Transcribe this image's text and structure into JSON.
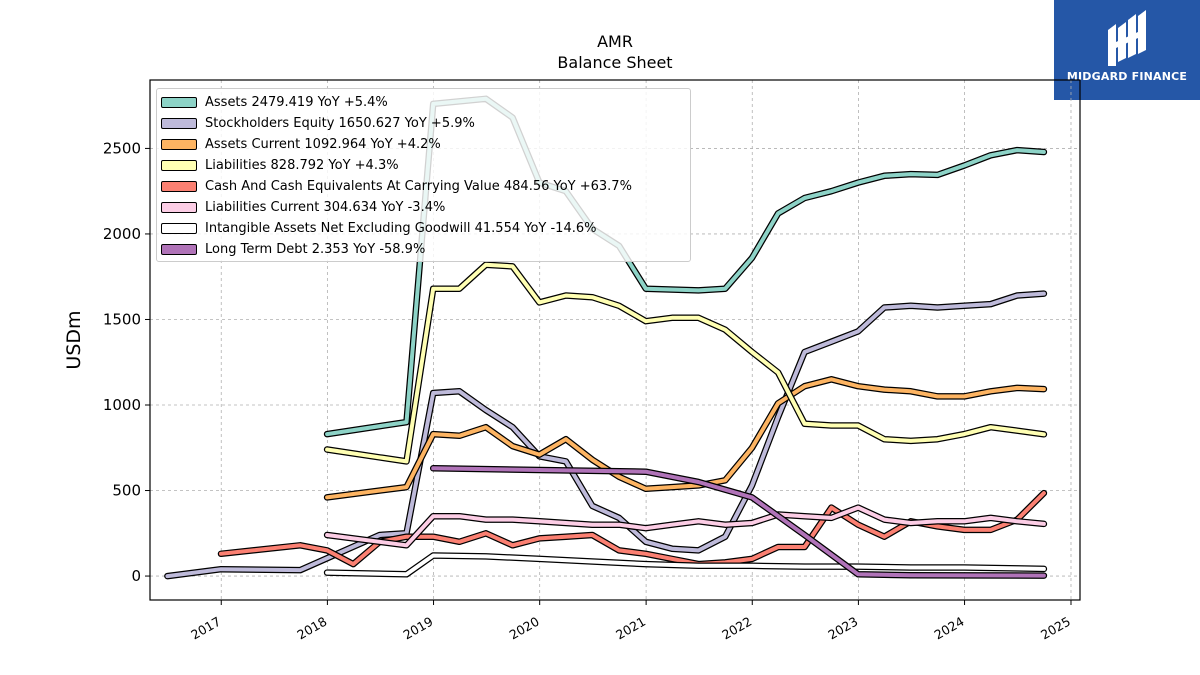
{
  "logo": {
    "text": "MIDGARD FINANCE",
    "icon": "midgard-logo-icon",
    "color": "#2557a7"
  },
  "chart_data": {
    "type": "line",
    "title": "AMR",
    "subtitle": "Balance  Sheet",
    "xlabel": "",
    "ylabel": "USDm",
    "xlim": [
      "2016-05-01",
      "2025-02-01"
    ],
    "ylim": [
      -140,
      2900
    ],
    "x_ticks": [
      "2017",
      "2018",
      "2019",
      "2020",
      "2021",
      "2022",
      "2023",
      "2024",
      "2025"
    ],
    "y_ticks": [
      0,
      500,
      1000,
      1500,
      2000,
      2500
    ],
    "grid": true,
    "legend_position": "top-left",
    "series": [
      {
        "name": "Assets",
        "label": "Assets  2479.419 YoY +5.4%",
        "color": "#8dd3c7",
        "points": [
          [
            "2017-12-31",
            830
          ],
          [
            "2018-09-30",
            900
          ],
          [
            "2018-12-31",
            2760
          ],
          [
            "2019-06-30",
            2790
          ],
          [
            "2019-09-30",
            2680
          ],
          [
            "2019-12-31",
            2300
          ],
          [
            "2020-03-31",
            2250
          ],
          [
            "2020-06-30",
            2030
          ],
          [
            "2020-09-30",
            1930
          ],
          [
            "2020-12-31",
            1680
          ],
          [
            "2021-06-30",
            1670
          ],
          [
            "2021-09-30",
            1680
          ],
          [
            "2021-12-31",
            1860
          ],
          [
            "2022-03-31",
            2120
          ],
          [
            "2022-06-30",
            2210
          ],
          [
            "2022-09-30",
            2250
          ],
          [
            "2022-12-31",
            2300
          ],
          [
            "2023-03-31",
            2340
          ],
          [
            "2023-06-30",
            2350
          ],
          [
            "2023-09-30",
            2345
          ],
          [
            "2023-12-31",
            2400
          ],
          [
            "2024-03-31",
            2460
          ],
          [
            "2024-06-30",
            2490
          ],
          [
            "2024-09-30",
            2479
          ]
        ]
      },
      {
        "name": "Stockholders Equity",
        "label": "Stockholders Equity  1650.627 YoY +5.9%",
        "color": "#bebada",
        "points": [
          [
            "2016-06-30",
            0
          ],
          [
            "2016-12-31",
            40
          ],
          [
            "2017-09-30",
            35
          ],
          [
            "2018-06-30",
            240
          ],
          [
            "2018-09-30",
            250
          ],
          [
            "2018-12-31",
            1070
          ],
          [
            "2019-03-31",
            1080
          ],
          [
            "2019-06-30",
            970
          ],
          [
            "2019-09-30",
            870
          ],
          [
            "2019-12-31",
            700
          ],
          [
            "2020-03-31",
            670
          ],
          [
            "2020-06-30",
            410
          ],
          [
            "2020-09-30",
            340
          ],
          [
            "2020-12-31",
            200
          ],
          [
            "2021-03-31",
            160
          ],
          [
            "2021-06-30",
            150
          ],
          [
            "2021-09-30",
            230
          ],
          [
            "2021-12-31",
            530
          ],
          [
            "2022-03-31",
            930
          ],
          [
            "2022-06-30",
            1310
          ],
          [
            "2022-09-30",
            1370
          ],
          [
            "2022-12-31",
            1430
          ],
          [
            "2023-03-31",
            1570
          ],
          [
            "2023-06-30",
            1580
          ],
          [
            "2023-09-30",
            1570
          ],
          [
            "2023-12-31",
            1580
          ],
          [
            "2024-03-31",
            1590
          ],
          [
            "2024-06-30",
            1640
          ],
          [
            "2024-09-30",
            1651
          ]
        ]
      },
      {
        "name": "Assets Current",
        "label": "Assets Current  1092.964 YoY +4.2%",
        "color": "#fdb462",
        "points": [
          [
            "2017-12-31",
            460
          ],
          [
            "2018-09-30",
            520
          ],
          [
            "2018-12-31",
            830
          ],
          [
            "2019-03-31",
            820
          ],
          [
            "2019-06-30",
            870
          ],
          [
            "2019-09-30",
            760
          ],
          [
            "2019-12-31",
            710
          ],
          [
            "2020-03-31",
            800
          ],
          [
            "2020-06-30",
            680
          ],
          [
            "2020-09-30",
            580
          ],
          [
            "2020-12-31",
            510
          ],
          [
            "2021-03-31",
            520
          ],
          [
            "2021-06-30",
            530
          ],
          [
            "2021-09-30",
            560
          ],
          [
            "2021-12-31",
            750
          ],
          [
            "2022-03-31",
            1010
          ],
          [
            "2022-06-30",
            1110
          ],
          [
            "2022-09-30",
            1150
          ],
          [
            "2022-12-31",
            1110
          ],
          [
            "2023-03-31",
            1090
          ],
          [
            "2023-06-30",
            1080
          ],
          [
            "2023-09-30",
            1050
          ],
          [
            "2023-12-31",
            1050
          ],
          [
            "2024-03-31",
            1080
          ],
          [
            "2024-06-30",
            1100
          ],
          [
            "2024-09-30",
            1093
          ]
        ]
      },
      {
        "name": "Liabilities",
        "label": "Liabilities  828.792 YoY +4.3%",
        "color": "#ffffb3",
        "points": [
          [
            "2017-12-31",
            740
          ],
          [
            "2018-09-30",
            670
          ],
          [
            "2018-12-31",
            1680
          ],
          [
            "2019-03-31",
            1680
          ],
          [
            "2019-06-30",
            1820
          ],
          [
            "2019-09-30",
            1810
          ],
          [
            "2019-12-31",
            1600
          ],
          [
            "2020-03-31",
            1640
          ],
          [
            "2020-06-30",
            1630
          ],
          [
            "2020-09-30",
            1580
          ],
          [
            "2020-12-31",
            1490
          ],
          [
            "2021-03-31",
            1510
          ],
          [
            "2021-06-30",
            1510
          ],
          [
            "2021-09-30",
            1440
          ],
          [
            "2021-12-31",
            1310
          ],
          [
            "2022-03-31",
            1190
          ],
          [
            "2022-06-30",
            890
          ],
          [
            "2022-09-30",
            880
          ],
          [
            "2022-12-31",
            880
          ],
          [
            "2023-03-31",
            800
          ],
          [
            "2023-06-30",
            790
          ],
          [
            "2023-09-30",
            800
          ],
          [
            "2023-12-31",
            830
          ],
          [
            "2024-03-31",
            870
          ],
          [
            "2024-06-30",
            850
          ],
          [
            "2024-09-30",
            829
          ]
        ]
      },
      {
        "name": "Cash And Cash Equivalents At Carrying Value",
        "label": "Cash And Cash Equivalents At Carrying Value  484.56 YoY +63.7%",
        "color": "#fb8072",
        "points": [
          [
            "2016-12-31",
            130
          ],
          [
            "2017-09-30",
            180
          ],
          [
            "2017-12-31",
            150
          ],
          [
            "2018-03-31",
            70
          ],
          [
            "2018-06-30",
            200
          ],
          [
            "2018-09-30",
            230
          ],
          [
            "2018-12-31",
            230
          ],
          [
            "2019-03-31",
            200
          ],
          [
            "2019-06-30",
            250
          ],
          [
            "2019-09-30",
            180
          ],
          [
            "2019-12-31",
            220
          ],
          [
            "2020-03-31",
            230
          ],
          [
            "2020-06-30",
            240
          ],
          [
            "2020-09-30",
            150
          ],
          [
            "2020-12-31",
            130
          ],
          [
            "2021-03-31",
            100
          ],
          [
            "2021-06-30",
            70
          ],
          [
            "2021-09-30",
            80
          ],
          [
            "2021-12-31",
            100
          ],
          [
            "2022-03-31",
            170
          ],
          [
            "2022-06-30",
            170
          ],
          [
            "2022-09-30",
            400
          ],
          [
            "2022-12-31",
            300
          ],
          [
            "2023-03-31",
            230
          ],
          [
            "2023-06-30",
            320
          ],
          [
            "2023-09-30",
            290
          ],
          [
            "2023-12-31",
            270
          ],
          [
            "2024-03-31",
            270
          ],
          [
            "2024-06-30",
            330
          ],
          [
            "2024-09-30",
            485
          ]
        ]
      },
      {
        "name": "Liabilities Current",
        "label": "Liabilities Current  304.634 YoY -3.4%",
        "color": "#fccde5",
        "points": [
          [
            "2017-12-31",
            240
          ],
          [
            "2018-09-30",
            180
          ],
          [
            "2018-12-31",
            350
          ],
          [
            "2019-03-31",
            350
          ],
          [
            "2019-06-30",
            330
          ],
          [
            "2019-09-30",
            330
          ],
          [
            "2019-12-31",
            320
          ],
          [
            "2020-03-31",
            310
          ],
          [
            "2020-06-30",
            300
          ],
          [
            "2020-09-30",
            300
          ],
          [
            "2020-12-31",
            280
          ],
          [
            "2021-03-31",
            300
          ],
          [
            "2021-06-30",
            320
          ],
          [
            "2021-09-30",
            300
          ],
          [
            "2021-12-31",
            310
          ],
          [
            "2022-03-31",
            360
          ],
          [
            "2022-06-30",
            350
          ],
          [
            "2022-09-30",
            340
          ],
          [
            "2022-12-31",
            400
          ],
          [
            "2023-03-31",
            330
          ],
          [
            "2023-06-30",
            310
          ],
          [
            "2023-09-30",
            320
          ],
          [
            "2023-12-31",
            320
          ],
          [
            "2024-03-31",
            340
          ],
          [
            "2024-06-30",
            320
          ],
          [
            "2024-09-30",
            305
          ]
        ]
      },
      {
        "name": "Intangible Assets Net Excluding Goodwill",
        "label": "Intangible Assets Net Excluding Goodwill  41.554 YoY -14.6%",
        "color": "#ffffff",
        "points": [
          [
            "2017-12-31",
            20
          ],
          [
            "2018-09-30",
            10
          ],
          [
            "2018-12-31",
            120
          ],
          [
            "2019-06-30",
            115
          ],
          [
            "2019-12-31",
            100
          ],
          [
            "2020-06-30",
            85
          ],
          [
            "2020-12-31",
            70
          ],
          [
            "2021-06-30",
            60
          ],
          [
            "2021-12-31",
            60
          ],
          [
            "2022-06-30",
            55
          ],
          [
            "2022-12-31",
            55
          ],
          [
            "2023-06-30",
            50
          ],
          [
            "2023-12-31",
            50
          ],
          [
            "2024-06-30",
            45
          ],
          [
            "2024-09-30",
            42
          ]
        ]
      },
      {
        "name": "Long Term Debt",
        "label": "Long Term Debt  2.353 YoY -58.9%",
        "color": "#b073b8",
        "points": [
          [
            "2018-12-31",
            630
          ],
          [
            "2019-12-31",
            620
          ],
          [
            "2020-12-31",
            610
          ],
          [
            "2021-06-30",
            550
          ],
          [
            "2021-12-31",
            460
          ],
          [
            "2022-06-30",
            240
          ],
          [
            "2022-12-31",
            10
          ],
          [
            "2023-06-30",
            5
          ],
          [
            "2024-09-30",
            2.4
          ]
        ]
      }
    ]
  }
}
